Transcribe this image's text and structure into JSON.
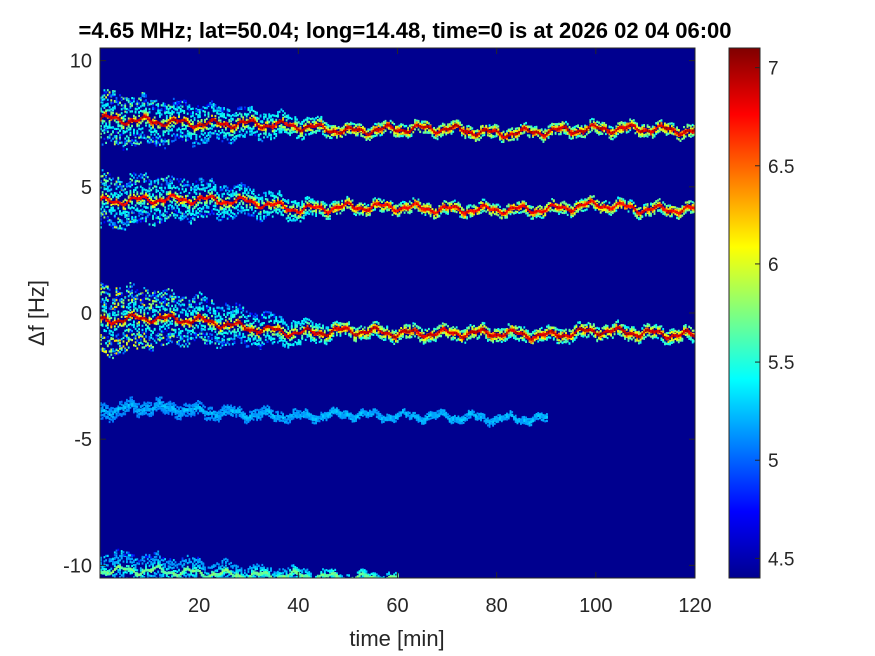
{
  "chart_data": {
    "type": "heatmap",
    "title": "=4.65 MHz;  lat=50.04; long=14.48, time=0 is at 2026 02 04 06:00",
    "xlabel": "time [min]",
    "ylabel": "Δf [Hz]",
    "xlim": [
      0,
      120
    ],
    "ylim": [
      -10.5,
      10.5
    ],
    "xticks": [
      20,
      40,
      60,
      80,
      100,
      120
    ],
    "xtick_labels": [
      "20",
      "40",
      "60",
      "80",
      "100",
      "120"
    ],
    "yticks": [
      10,
      5,
      0,
      -5,
      -10
    ],
    "ytick_labels": [
      "10",
      "5",
      "0",
      "-5",
      "-10"
    ],
    "colormap": "jet",
    "colorbar": {
      "clim": [
        4.4,
        7.1
      ],
      "ticks": [
        7,
        6.5,
        6,
        5.5,
        5,
        4.5
      ],
      "tick_labels": [
        "7",
        "6.5",
        "6",
        "5.5",
        "5",
        "4.5"
      ]
    },
    "background_color": "#00008f",
    "traces": [
      {
        "name": "",
        "t": [
          0,
          10,
          20,
          30,
          40,
          50,
          60,
          70,
          80,
          90,
          100,
          110,
          120
        ],
        "f": [
          7.7,
          7.6,
          7.5,
          7.5,
          7.4,
          7.2,
          7.3,
          7.3,
          7.1,
          7.2,
          7.3,
          7.3,
          7.2
        ],
        "spread_start": 1.0,
        "peak": 7.0
      },
      {
        "name": "",
        "t": [
          0,
          10,
          20,
          30,
          40,
          50,
          60,
          70,
          80,
          90,
          100,
          110,
          120
        ],
        "f": [
          4.4,
          4.5,
          4.5,
          4.4,
          4.1,
          4.2,
          4.2,
          4.1,
          4.1,
          4.1,
          4.3,
          4.1,
          4.1
        ],
        "spread_start": 1.0,
        "peak": 6.9
      },
      {
        "name": "",
        "t": [
          0,
          10,
          20,
          30,
          40,
          50,
          60,
          70,
          80,
          90,
          100,
          110,
          120
        ],
        "f": [
          -0.3,
          -0.2,
          -0.3,
          -0.6,
          -0.8,
          -0.7,
          -0.8,
          -0.8,
          -0.8,
          -0.9,
          -0.7,
          -0.8,
          -0.9
        ],
        "spread_start": 1.3,
        "peak": 7.0
      },
      {
        "name": "",
        "t": [
          0,
          10,
          20,
          30,
          40,
          50,
          60,
          70,
          80,
          90
        ],
        "f": [
          -3.9,
          -3.7,
          -3.9,
          -4.0,
          -4.1,
          -4.0,
          -4.1,
          -4.1,
          -4.2,
          -4.2
        ],
        "spread_start": 0.2,
        "peak": 5.3
      },
      {
        "name": "",
        "t": [
          0,
          10,
          20,
          30,
          40,
          50,
          60
        ],
        "f": [
          -10.2,
          -10.2,
          -10.3,
          -10.4,
          -10.4,
          -10.5,
          -10.5
        ],
        "spread_start": 0.6,
        "peak": 5.8
      }
    ]
  }
}
